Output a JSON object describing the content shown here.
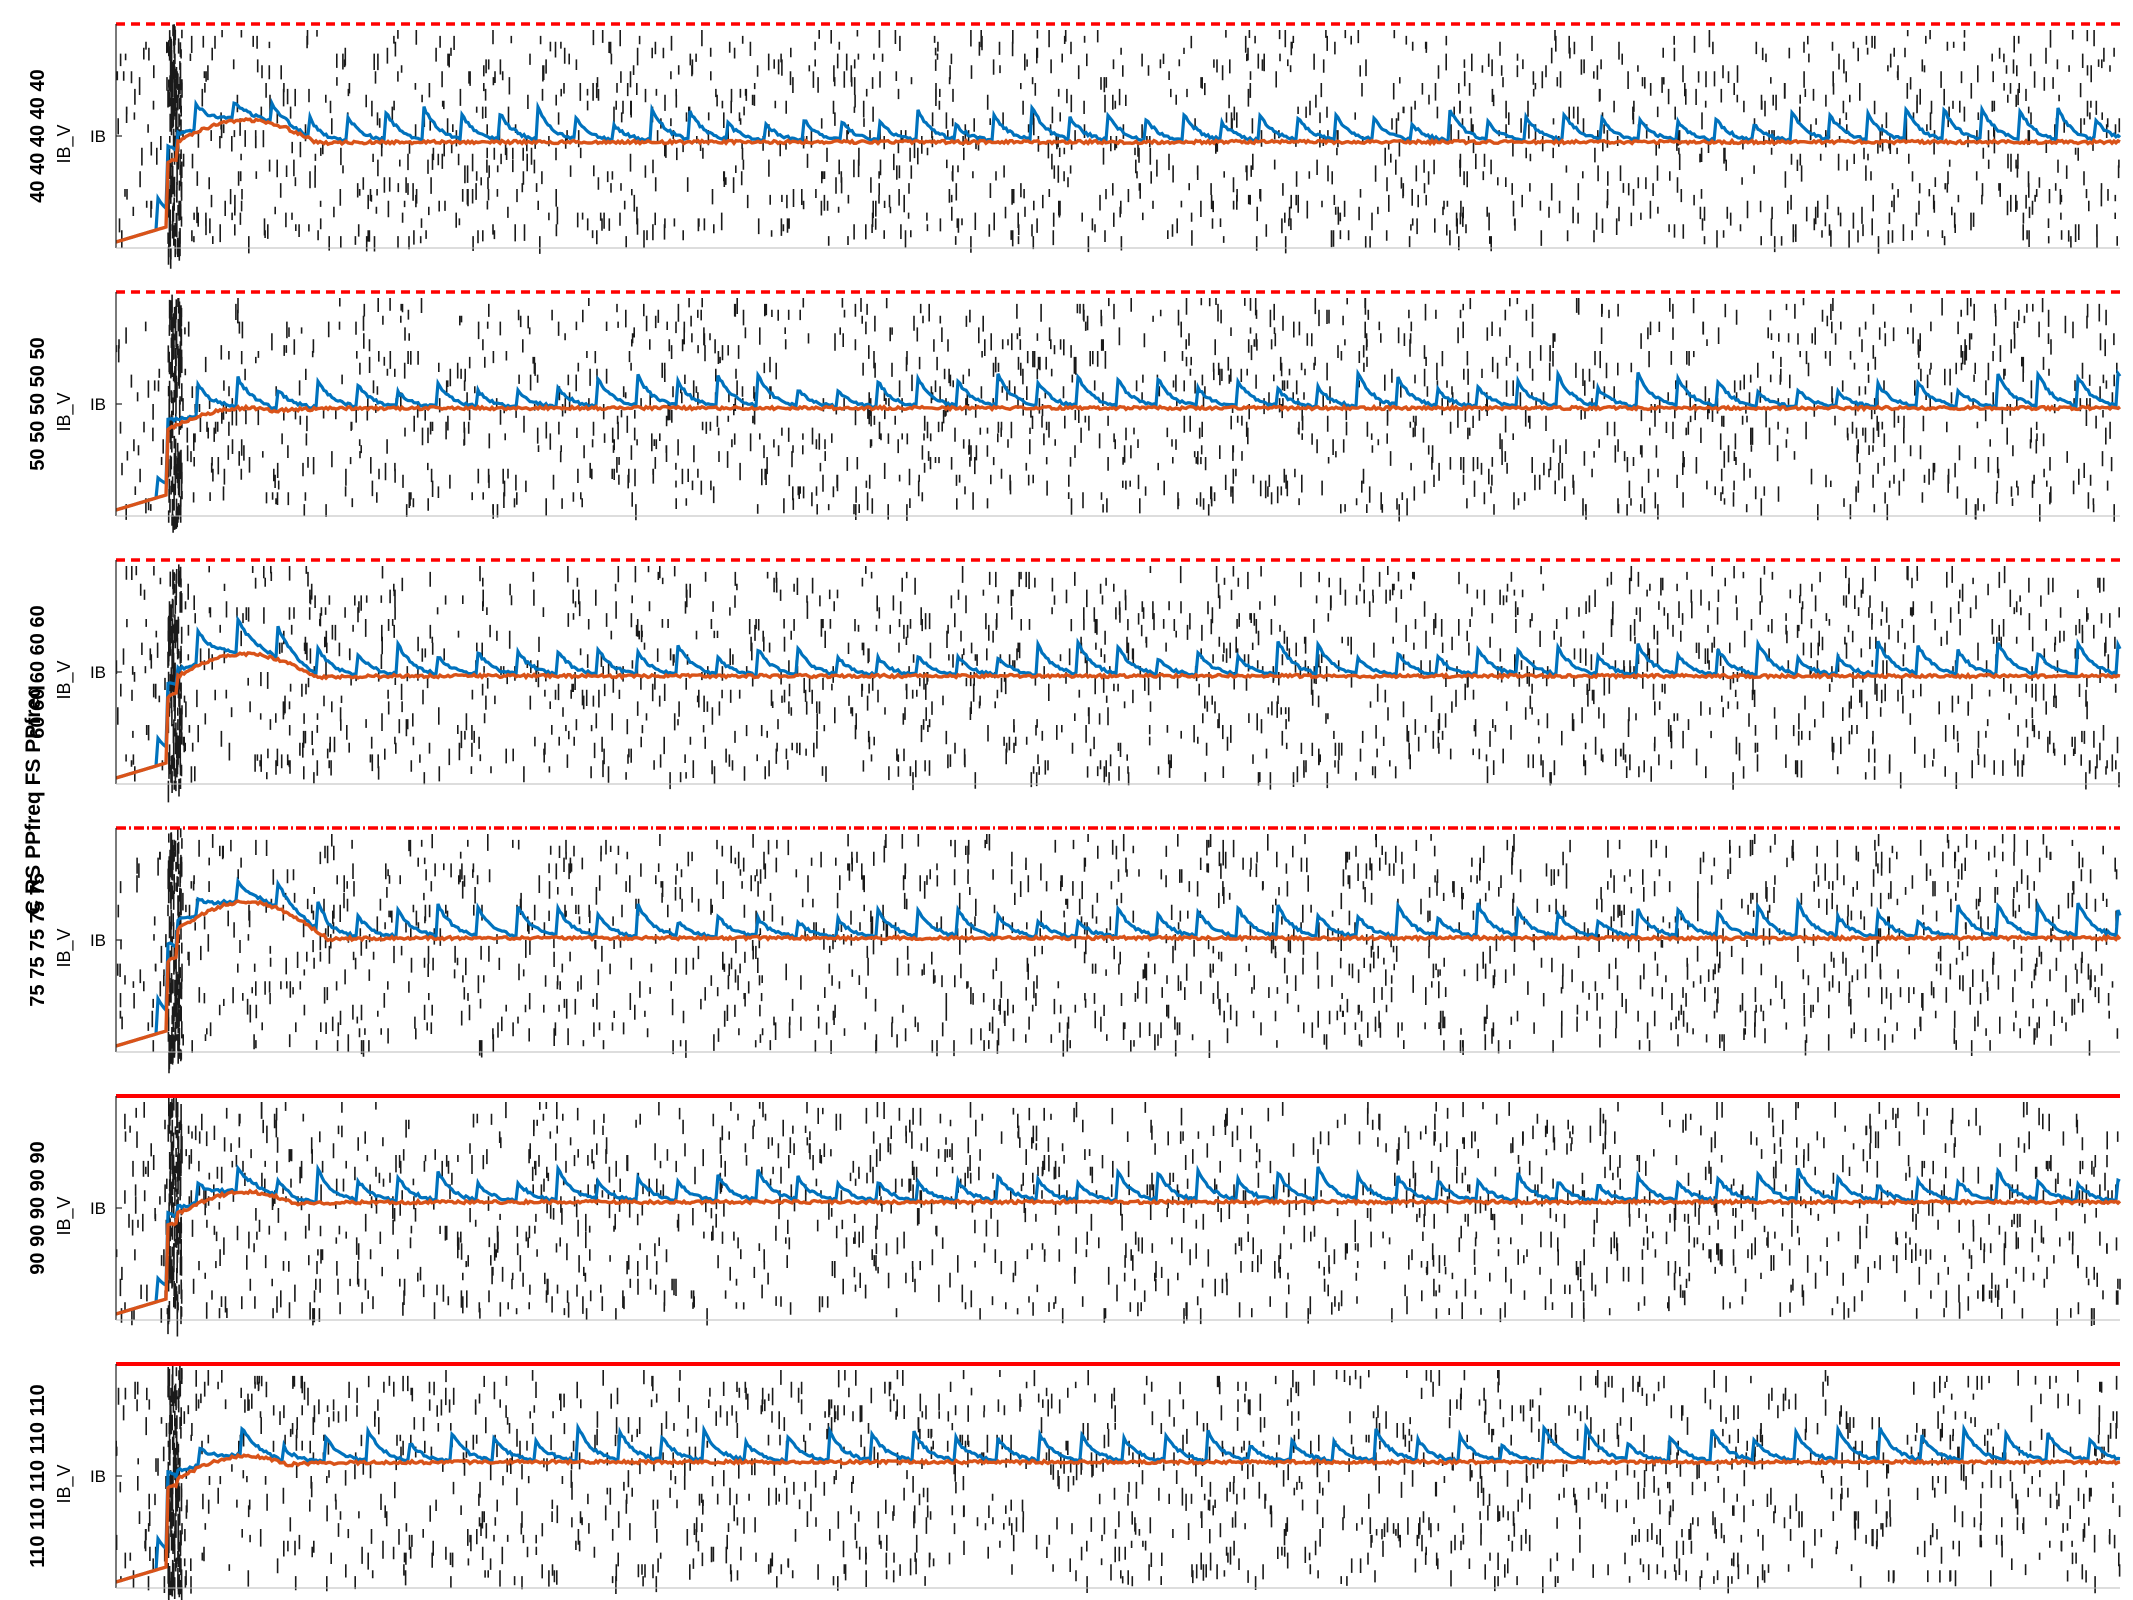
{
  "figure": {
    "group_label": "C RS PPfreq FS PPfreq",
    "ylabel": "IB_V",
    "ytick": "IB",
    "colors": {
      "spikes": "#1a1a1a",
      "trace_fast": "#0072bd",
      "trace_slow": "#d95319",
      "threshold": "#ff0000",
      "axis": "#222222"
    }
  },
  "chart_data": [
    {
      "type": "line",
      "panel_label": "40 40 40 40 40",
      "ylabel": "IB_V",
      "ytick_label": "IB",
      "threshold_style": "dashed",
      "series": [
        {
          "values": "trace_fast"
        },
        {
          "values": "trace_slow"
        }
      ]
    },
    {
      "type": "line",
      "panel_label": "50 50 50 50 50",
      "ylabel": "IB_V",
      "ytick_label": "IB",
      "threshold_style": "dashed",
      "series": [
        {
          "values": "trace_fast"
        },
        {
          "values": "trace_slow"
        }
      ]
    },
    {
      "type": "line",
      "panel_label": "60 60 60 60 60",
      "ylabel": "IB_V",
      "ytick_label": "IB",
      "threshold_style": "dashed",
      "series": [
        {
          "values": "trace_fast"
        },
        {
          "values": "trace_slow"
        }
      ]
    },
    {
      "type": "line",
      "panel_label": "75 75 75 75 75",
      "ylabel": "IB_V",
      "ytick_label": "IB",
      "threshold_style": "dash-dot",
      "series": [
        {
          "values": "trace_fast"
        },
        {
          "values": "trace_slow"
        }
      ]
    },
    {
      "type": "line",
      "panel_label": "90 90 90 90 90",
      "ylabel": "IB_V",
      "ytick_label": "IB",
      "threshold_style": "solid",
      "series": [
        {
          "values": "trace_fast"
        },
        {
          "values": "trace_slow"
        }
      ]
    },
    {
      "type": "line",
      "panel_label": "110 110 110 110 110",
      "ylabel": "IB_V",
      "ytick_label": "IB",
      "threshold_style": "solid",
      "series": [
        {
          "values": "trace_fast"
        },
        {
          "values": "trace_slow"
        }
      ]
    }
  ]
}
